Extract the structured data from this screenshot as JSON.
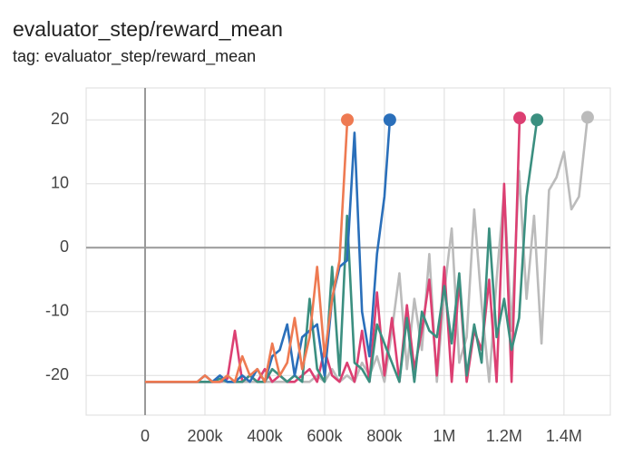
{
  "chart_data": {
    "type": "line",
    "title": "evaluator_step/reward_mean",
    "subtitle": "tag: evaluator_step/reward_mean",
    "xlim": [
      -197000,
      1555000
    ],
    "ylim": [
      -26.2,
      25
    ],
    "xticks": [
      0,
      {
        "value": 200000,
        "label": "200k"
      },
      {
        "value": 400000,
        "label": "400k"
      },
      {
        "value": 600000,
        "label": "600k"
      },
      {
        "value": 800000,
        "label": "800k"
      },
      {
        "value": 1000000,
        "label": "1M"
      },
      {
        "value": 1200000,
        "label": "1.2M"
      },
      {
        "value": 1400000,
        "label": "1.4M"
      }
    ],
    "yticks": [
      -20,
      -10,
      0,
      10,
      20
    ],
    "grid": true,
    "series": [
      {
        "color": "#ee7a52",
        "x": [
          0,
          25000,
          50000,
          75000,
          100000,
          125000,
          150000,
          175000,
          200000,
          225000,
          250000,
          275000,
          300000,
          325000,
          350000,
          375000,
          400000,
          425000,
          450000,
          475000,
          500000,
          525000,
          550000,
          575000,
          600000,
          625000,
          650000,
          676000
        ],
        "values": [
          -21,
          -21,
          -21,
          -21,
          -21,
          -21,
          -21,
          -21,
          -20,
          -21,
          -21,
          -20,
          -21,
          -17,
          -20,
          -19,
          -21,
          -15,
          -20,
          -18,
          -11,
          -19,
          -14,
          -3,
          -17,
          -8,
          -2,
          20
        ]
      },
      {
        "color": "#2a6fba",
        "x": [
          0,
          25000,
          50000,
          75000,
          100000,
          125000,
          150000,
          175000,
          200000,
          225000,
          250000,
          275000,
          300000,
          325000,
          350000,
          375000,
          400000,
          425000,
          450000,
          475000,
          500000,
          525000,
          550000,
          575000,
          600000,
          625000,
          650000,
          675000,
          700000,
          725000,
          750000,
          775000,
          800000,
          818000
        ],
        "values": [
          -21,
          -21,
          -21,
          -21,
          -21,
          -21,
          -21,
          -21,
          -20,
          -21,
          -20,
          -21,
          -21,
          -20,
          -21,
          -19,
          -21,
          -17,
          -16,
          -12,
          -20,
          -14,
          -13,
          -12,
          -20,
          -8,
          -3,
          -2,
          18,
          -10,
          -17,
          -1,
          8,
          20
        ]
      },
      {
        "color": "#3b8f80",
        "x": [
          0,
          25000,
          50000,
          75000,
          100000,
          125000,
          150000,
          175000,
          200000,
          225000,
          250000,
          275000,
          300000,
          325000,
          350000,
          375000,
          400000,
          425000,
          450000,
          475000,
          500000,
          525000,
          550000,
          575000,
          600000,
          625000,
          650000,
          675000,
          700000,
          725000,
          750000,
          775000,
          800000,
          825000,
          850000,
          875000,
          900000,
          925000,
          950000,
          975000,
          1000000,
          1025000,
          1050000,
          1075000,
          1100000,
          1125000,
          1150000,
          1175000,
          1200000,
          1225000,
          1250000,
          1275000,
          1310000
        ],
        "values": [
          -21,
          -21,
          -21,
          -21,
          -21,
          -21,
          -21,
          -21,
          -21,
          -21,
          -20.5,
          -21,
          -21,
          -21,
          -20,
          -21,
          -21,
          -19,
          -20,
          -21,
          -20,
          -21,
          -8,
          -19,
          -21,
          -3,
          -20,
          5,
          -18,
          -19,
          -21,
          -12,
          -15,
          -18,
          -21,
          -11,
          -21,
          -10,
          -13,
          -14,
          -6,
          -15,
          -4,
          -20,
          -12,
          -18,
          3,
          -14,
          -8,
          -16,
          -11,
          8,
          20
        ]
      },
      {
        "color": "#dc3f72",
        "x": [
          0,
          25000,
          50000,
          75000,
          100000,
          125000,
          150000,
          175000,
          200000,
          225000,
          250000,
          275000,
          300000,
          325000,
          350000,
          375000,
          400000,
          425000,
          450000,
          475000,
          500000,
          525000,
          550000,
          575000,
          600000,
          625000,
          650000,
          675000,
          700000,
          725000,
          750000,
          775000,
          800000,
          825000,
          850000,
          875000,
          900000,
          925000,
          950000,
          975000,
          1000000,
          1025000,
          1050000,
          1075000,
          1100000,
          1125000,
          1150000,
          1175000,
          1200000,
          1225000,
          1252000
        ],
        "values": [
          -21,
          -21,
          -21,
          -21,
          -21,
          -21,
          -21,
          -21,
          -21,
          -21,
          -21,
          -20.5,
          -13,
          -21,
          -20,
          -21,
          -19,
          -21,
          -20,
          -21,
          -21,
          -20,
          -19,
          -21,
          -16,
          -20,
          -21,
          -18,
          -21,
          -13,
          -21,
          -7,
          -20,
          -11,
          -21,
          -9,
          -19,
          -13,
          -5,
          -20,
          -3,
          -21,
          -5,
          -21,
          -13,
          -16,
          -5,
          -21,
          10,
          -21,
          20.3
        ]
      },
      {
        "color": "#bbbbbb",
        "x": [
          0,
          25000,
          50000,
          75000,
          100000,
          125000,
          150000,
          175000,
          200000,
          225000,
          250000,
          275000,
          300000,
          325000,
          350000,
          375000,
          400000,
          425000,
          450000,
          475000,
          500000,
          525000,
          550000,
          575000,
          600000,
          625000,
          650000,
          675000,
          700000,
          725000,
          750000,
          775000,
          800000,
          825000,
          850000,
          875000,
          900000,
          925000,
          950000,
          975000,
          1000000,
          1025000,
          1050000,
          1075000,
          1100000,
          1125000,
          1150000,
          1175000,
          1200000,
          1225000,
          1250000,
          1275000,
          1300000,
          1325000,
          1350000,
          1375000,
          1400000,
          1425000,
          1450000,
          1479000
        ],
        "values": [
          -21,
          -21,
          -21,
          -21,
          -21,
          -21,
          -21,
          -21,
          -21,
          -21,
          -21,
          -21,
          -21,
          -21,
          -21,
          -21,
          -21,
          -21,
          -21,
          -21,
          -20,
          -21,
          -21,
          -20,
          -21,
          -19,
          -21,
          -20,
          -21,
          -18,
          -20,
          -17,
          -21,
          -13,
          -4,
          -19,
          -8,
          -16,
          -1,
          -21,
          -7,
          3,
          -18,
          -14,
          6,
          -9,
          -21,
          -5,
          9,
          -13,
          12,
          -8,
          5,
          -15,
          9,
          11,
          15,
          6,
          8,
          20.4
        ]
      }
    ]
  }
}
